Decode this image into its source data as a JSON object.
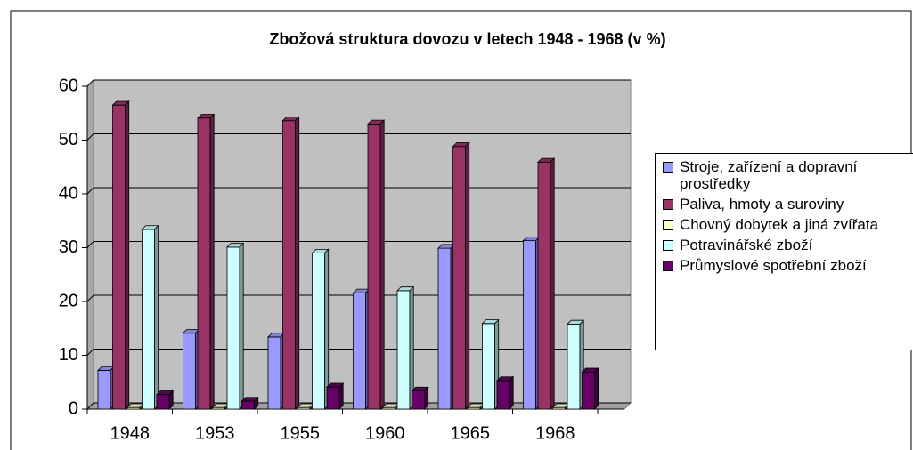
{
  "chart_data": {
    "type": "bar",
    "title": "Zbožová struktura dovozu v letech 1948 - 1968 (v %)",
    "categories": [
      "1948",
      "1953",
      "1955",
      "1960",
      "1965",
      "1968"
    ],
    "series": [
      {
        "name": "Stroje, zařízení a dopravní prostředky",
        "color": "#9999ff",
        "values": [
          7.2,
          14.1,
          13.4,
          21.6,
          29.9,
          31.3
        ]
      },
      {
        "name": "Paliva, hmoty a suroviny",
        "color": "#993366",
        "values": [
          56.5,
          54.1,
          53.6,
          53.0,
          48.8,
          45.9
        ]
      },
      {
        "name": "Chovný dobytek a jiná zvířata",
        "color": "#ffffcc",
        "values": [
          0.3,
          0.3,
          0.3,
          0.3,
          0.3,
          0.3
        ]
      },
      {
        "name": "Potravinářské zboží",
        "color": "#ccffff",
        "values": [
          33.4,
          30.1,
          29.0,
          22.0,
          15.9,
          15.8
        ]
      },
      {
        "name": "Průmyslové spotřební zboží",
        "color": "#660066",
        "values": [
          2.7,
          1.5,
          4.1,
          3.4,
          5.3,
          6.9
        ]
      }
    ],
    "ylim": [
      0,
      60
    ],
    "yticks": [
      0,
      10,
      20,
      30,
      40,
      50,
      60
    ],
    "grid": true,
    "legend": "right"
  }
}
